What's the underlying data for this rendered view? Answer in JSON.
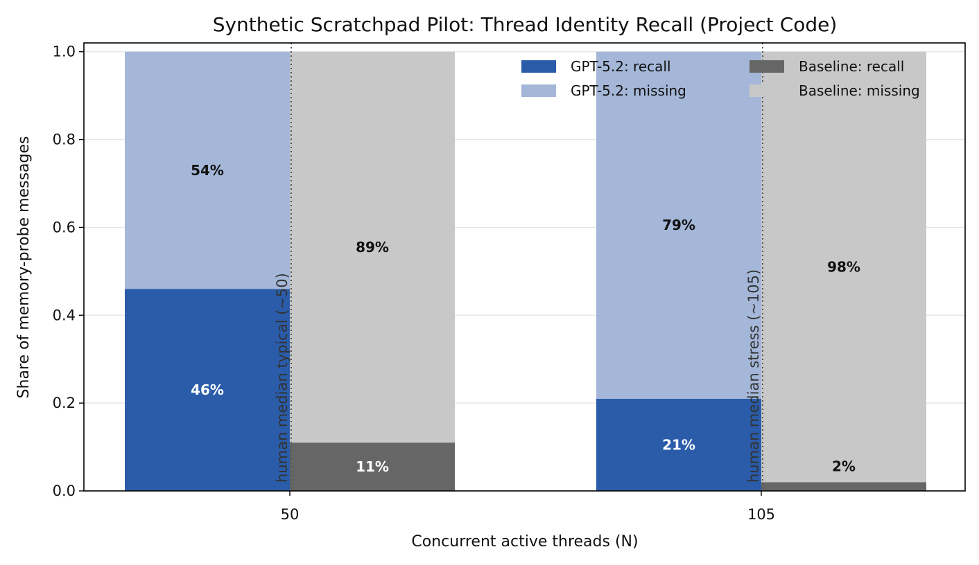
{
  "chart_data": {
    "type": "bar",
    "stacked": true,
    "title": "Synthetic Scratchpad Pilot: Thread Identity Recall (Project Code)",
    "xlabel": "Concurrent active threads (N)",
    "ylabel": "Share of memory-probe messages",
    "categories": [
      "50",
      "105"
    ],
    "ylim": [
      0,
      1.02
    ],
    "yticks": [
      "0.0",
      "0.2",
      "0.4",
      "0.6",
      "0.8",
      "1.0"
    ],
    "grid": "y",
    "legend_position": "top-right",
    "series": [
      {
        "name": "GPT-5.2: recall",
        "group": "GPT-5.2",
        "values": [
          0.46,
          0.21
        ],
        "labels": [
          "46%",
          "21%"
        ],
        "color": "#2a5caa",
        "label_color": "#ffffff"
      },
      {
        "name": "GPT-5.2: missing",
        "group": "GPT-5.2",
        "values": [
          0.54,
          0.79
        ],
        "labels": [
          "54%",
          "79%"
        ],
        "color": "#a4b7d8",
        "label_color": "#111111"
      },
      {
        "name": "Baseline: recall",
        "group": "Baseline",
        "values": [
          0.11,
          0.02
        ],
        "labels": [
          "11%",
          "2%"
        ],
        "color": "#666666",
        "label_color": "#ffffff"
      },
      {
        "name": "Baseline: missing",
        "group": "Baseline",
        "values": [
          0.89,
          0.98
        ],
        "labels": [
          "89%",
          "98%"
        ],
        "color": "#c8c8c8",
        "label_color": "#111111"
      }
    ],
    "reference_lines": [
      {
        "x": "50",
        "label": "human median typical (~50)"
      },
      {
        "x": "105",
        "label": "human median stress (~105)"
      }
    ]
  }
}
